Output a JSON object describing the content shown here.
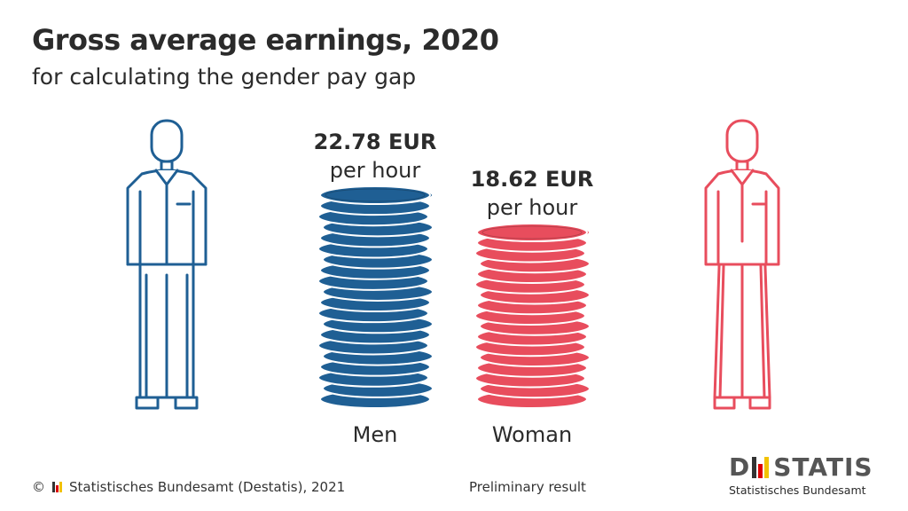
{
  "title": "Gross average earnings, 2020",
  "subtitle": "for calculating the gender pay gap",
  "chart_data": {
    "type": "bar",
    "categories": [
      "Men",
      "Woman"
    ],
    "values": [
      22.78,
      18.62
    ],
    "unit": "EUR per hour",
    "value_labels": [
      "22.78 EUR",
      "18.62 EUR"
    ],
    "unit_labels": [
      "per hour",
      "per hour"
    ],
    "colors": [
      "#1f5f94",
      "#e84d5d"
    ],
    "ylim": [
      0,
      22.78
    ]
  },
  "footer": {
    "copyright": "©",
    "source": "Statistisches Bundesamt (Destatis), 2021",
    "note": "Preliminary result"
  },
  "logo": {
    "part1": "D",
    "part2": "STATIS",
    "subtitle": "Statistisches Bundesamt"
  },
  "icons": {
    "man": "man-figure-icon",
    "woman": "woman-figure-icon"
  }
}
